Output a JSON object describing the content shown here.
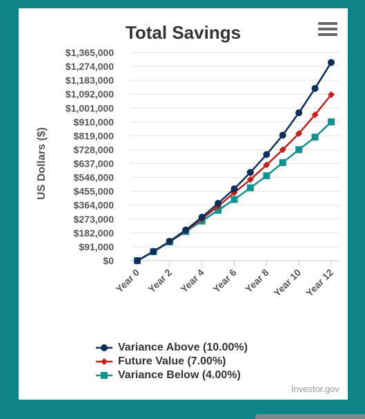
{
  "chart_data": {
    "type": "line",
    "title": "Total Savings",
    "xlabel": "",
    "ylabel": "US Dollars ($)",
    "x": [
      0,
      1,
      2,
      3,
      4,
      5,
      6,
      7,
      8,
      9,
      10,
      11,
      12
    ],
    "x_tick_labels": [
      "Year 0",
      "Year 2",
      "Year 4",
      "Year 6",
      "Year 8",
      "Year 10",
      "Year 12"
    ],
    "x_tick_positions": [
      0,
      2,
      4,
      6,
      8,
      10,
      12
    ],
    "y_tick_labels": [
      "$0",
      "$91,000",
      "$182,000",
      "$273,000",
      "$364,000",
      "$455,000",
      "$546,000",
      "$637,000",
      "$728,000",
      "$819,000",
      "$910,000",
      "$1,001,000",
      "$1,092,000",
      "$1,183,000",
      "$1,274,000",
      "$1,365,000"
    ],
    "ylim": [
      0,
      1365000
    ],
    "grid": true,
    "legend_position": "bottom",
    "series": [
      {
        "name": "Variance Above (10.00%)",
        "color": "#0d2e57",
        "marker": "circle",
        "values": [
          0,
          60000,
          127000,
          201000,
          285000,
          376000,
          471000,
          579000,
          696000,
          823000,
          970000,
          1130000,
          1300000
        ]
      },
      {
        "name": "Future Value (7.00%)",
        "color": "#c41f1f",
        "marker": "diamond",
        "values": [
          0,
          60000,
          125000,
          196000,
          274000,
          357000,
          446000,
          532000,
          628000,
          728000,
          834000,
          957000,
          1089000
        ]
      },
      {
        "name": "Variance Below (4.00%)",
        "color": "#12918f",
        "marker": "square",
        "values": [
          0,
          59000,
          123000,
          191000,
          260000,
          330000,
          401000,
          478000,
          557000,
          643000,
          728000,
          810000,
          910000
        ]
      }
    ]
  },
  "credit": "Investor.gov",
  "menu_icon": "hamburger-menu-icon"
}
